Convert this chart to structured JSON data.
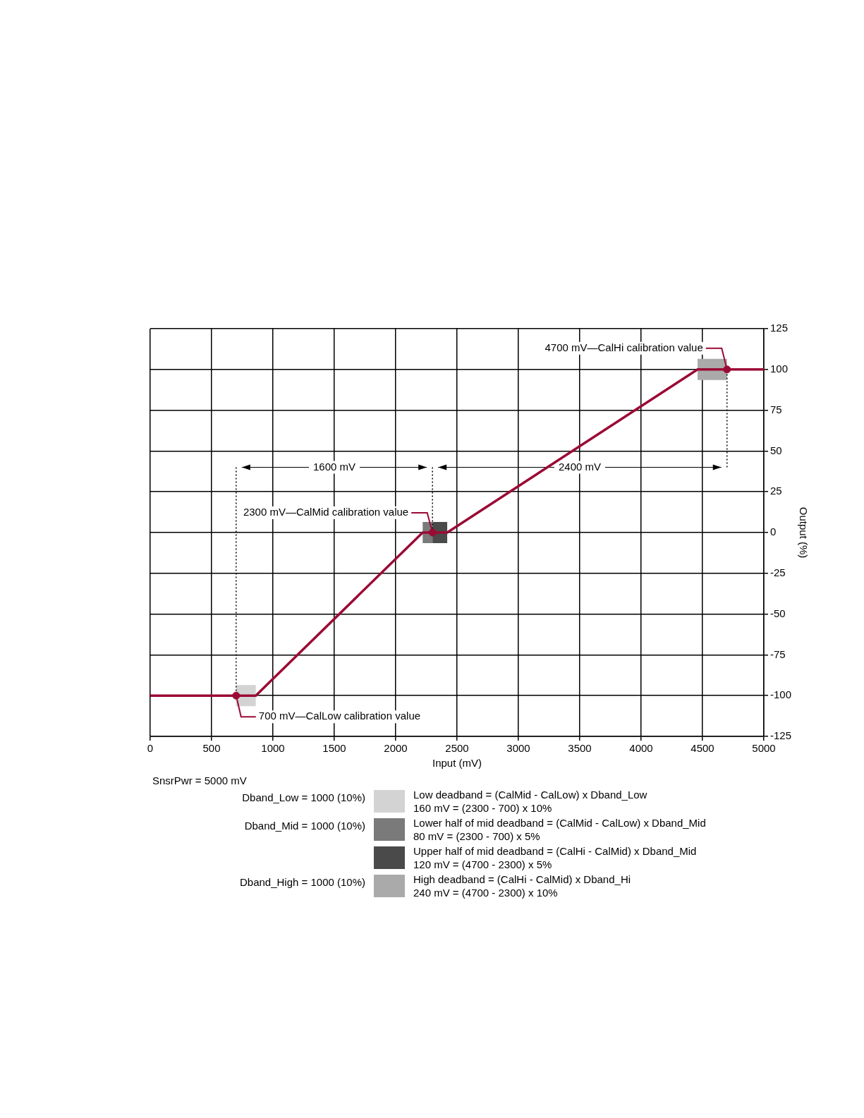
{
  "chart_data": {
    "type": "line",
    "xlabel": "Input (mV)",
    "ylabel": "Output (%)",
    "xlim": [
      0,
      5000
    ],
    "xticks": [
      0,
      500,
      1000,
      1500,
      2000,
      2500,
      3000,
      3500,
      4000,
      4500,
      5000
    ],
    "ylim": [
      -125,
      125
    ],
    "yticks": [
      -125,
      -100,
      -75,
      -50,
      -25,
      0,
      25,
      50,
      75,
      100,
      125
    ],
    "grid": true,
    "legend": "bottom",
    "series": [
      {
        "type": "line",
        "color": "#9b0a35",
        "line_style": "solid",
        "marker": "none",
        "x": [
          0,
          860,
          2220,
          2420,
          4460,
          5000
        ],
        "values": [
          -100,
          -100,
          0,
          0,
          100,
          100
        ]
      },
      {
        "type": "scatter",
        "color": "#9b0a35",
        "marker": "circle",
        "x": [
          700,
          2300,
          4700
        ],
        "values": [
          -100,
          0,
          100
        ]
      }
    ],
    "ref_lines": [
      {
        "axis": "x",
        "value": 700,
        "line_style": "dotted",
        "color": "#000000"
      },
      {
        "axis": "x",
        "value": 2300,
        "line_style": "dotted",
        "color": "#000000"
      },
      {
        "axis": "x",
        "value": 4700,
        "line_style": "dotted",
        "color": "#000000"
      }
    ],
    "bands": [
      {
        "axis": "x",
        "from": 700,
        "to": 860,
        "color": "#d3d3d3",
        "label": "Low deadband = (CalMid - CalLow) x Dband_Low\n160 mV = (2300 - 700) x 10%"
      },
      {
        "axis": "x",
        "from": 2220,
        "to": 2300,
        "color": "#7a7a7a",
        "label": "Lower half of mid deadband = (CalMid - CalLow) x Dband_Mid\n80 mV = (2300 - 700) x 5%"
      },
      {
        "axis": "x",
        "from": 2300,
        "to": 2420,
        "color": "#4a4a4a",
        "label": "Upper half of mid deadband = (CalHi - CalMid) x Dband_Mid\n120 mV = (4700 - 2300) x 5%"
      },
      {
        "axis": "x",
        "from": 4460,
        "to": 4700,
        "color": "#aaaaaa",
        "label": "High deadband = (CalHi - CalMid) x Dband_Hi\n240 mV = (4700 - 2300) x 10%"
      }
    ],
    "annotations": [
      {
        "text": "4700 mV—CalHi calibration value",
        "x": 4700,
        "y": 100
      },
      {
        "text": "2300 mV—CalMid calibration value",
        "x": 2300,
        "y": 0
      },
      {
        "text": "700 mV—CalLow calibration value",
        "x": 700,
        "y": -100
      },
      "1600 mV",
      "2400 mV",
      "SnsrPwr = 5000 mV",
      "Dband_Low = 1000 (10%)",
      "Dband_Mid = 1000 (10%)",
      "Dband_High = 1000 (10%)"
    ]
  }
}
